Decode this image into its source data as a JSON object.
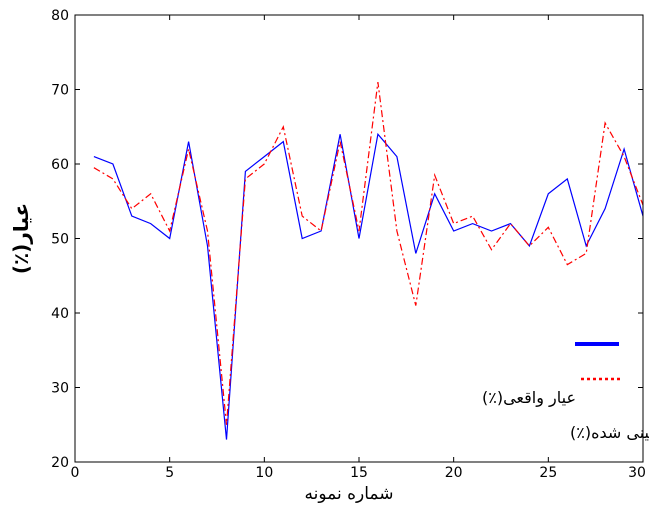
{
  "chart_data": {
    "type": "line",
    "title": "",
    "xlabel": "شماره نمونه",
    "ylabel": "عیار(٪)",
    "xlim": [
      0,
      30
    ],
    "ylim": [
      20,
      80
    ],
    "xticks": [
      0,
      5,
      10,
      15,
      20,
      25,
      30
    ],
    "yticks": [
      20,
      30,
      40,
      50,
      60,
      70,
      80
    ],
    "grid": false,
    "legend_position": "bottom-right",
    "series": [
      {
        "name": "عیار واقعی(٪)",
        "color": "#0000ff",
        "style": "solid",
        "x": [
          1,
          2,
          3,
          4,
          5,
          6,
          7,
          8,
          9,
          10,
          11,
          12,
          13,
          14,
          15,
          16,
          17,
          18,
          19,
          20,
          21,
          22,
          23,
          24,
          25,
          26,
          27,
          28,
          29,
          30
        ],
        "y": [
          61,
          60,
          53,
          52,
          50,
          63,
          49,
          23,
          59,
          61,
          63,
          50,
          51,
          64,
          50,
          64,
          61,
          48,
          56,
          51,
          52,
          51,
          52,
          49,
          56,
          58,
          49,
          54,
          62,
          53
        ]
      },
      {
        "name": "عیار پیش بینی شده(٪)",
        "color": "#ff0000",
        "style": "dashdot",
        "x": [
          1,
          2,
          3,
          4,
          5,
          6,
          7,
          8,
          9,
          10,
          11,
          12,
          13,
          14,
          15,
          16,
          17,
          18,
          19,
          20,
          21,
          22,
          23,
          24,
          25,
          26,
          27,
          28,
          29,
          30
        ],
        "y": [
          59.5,
          58,
          54,
          56,
          51,
          62,
          51,
          25,
          58,
          60,
          65,
          53,
          51,
          63,
          51,
          71,
          51,
          41,
          58.5,
          52,
          53,
          48.5,
          52,
          49,
          51.5,
          46.5,
          48,
          65.5,
          61,
          54.5
        ]
      }
    ]
  }
}
